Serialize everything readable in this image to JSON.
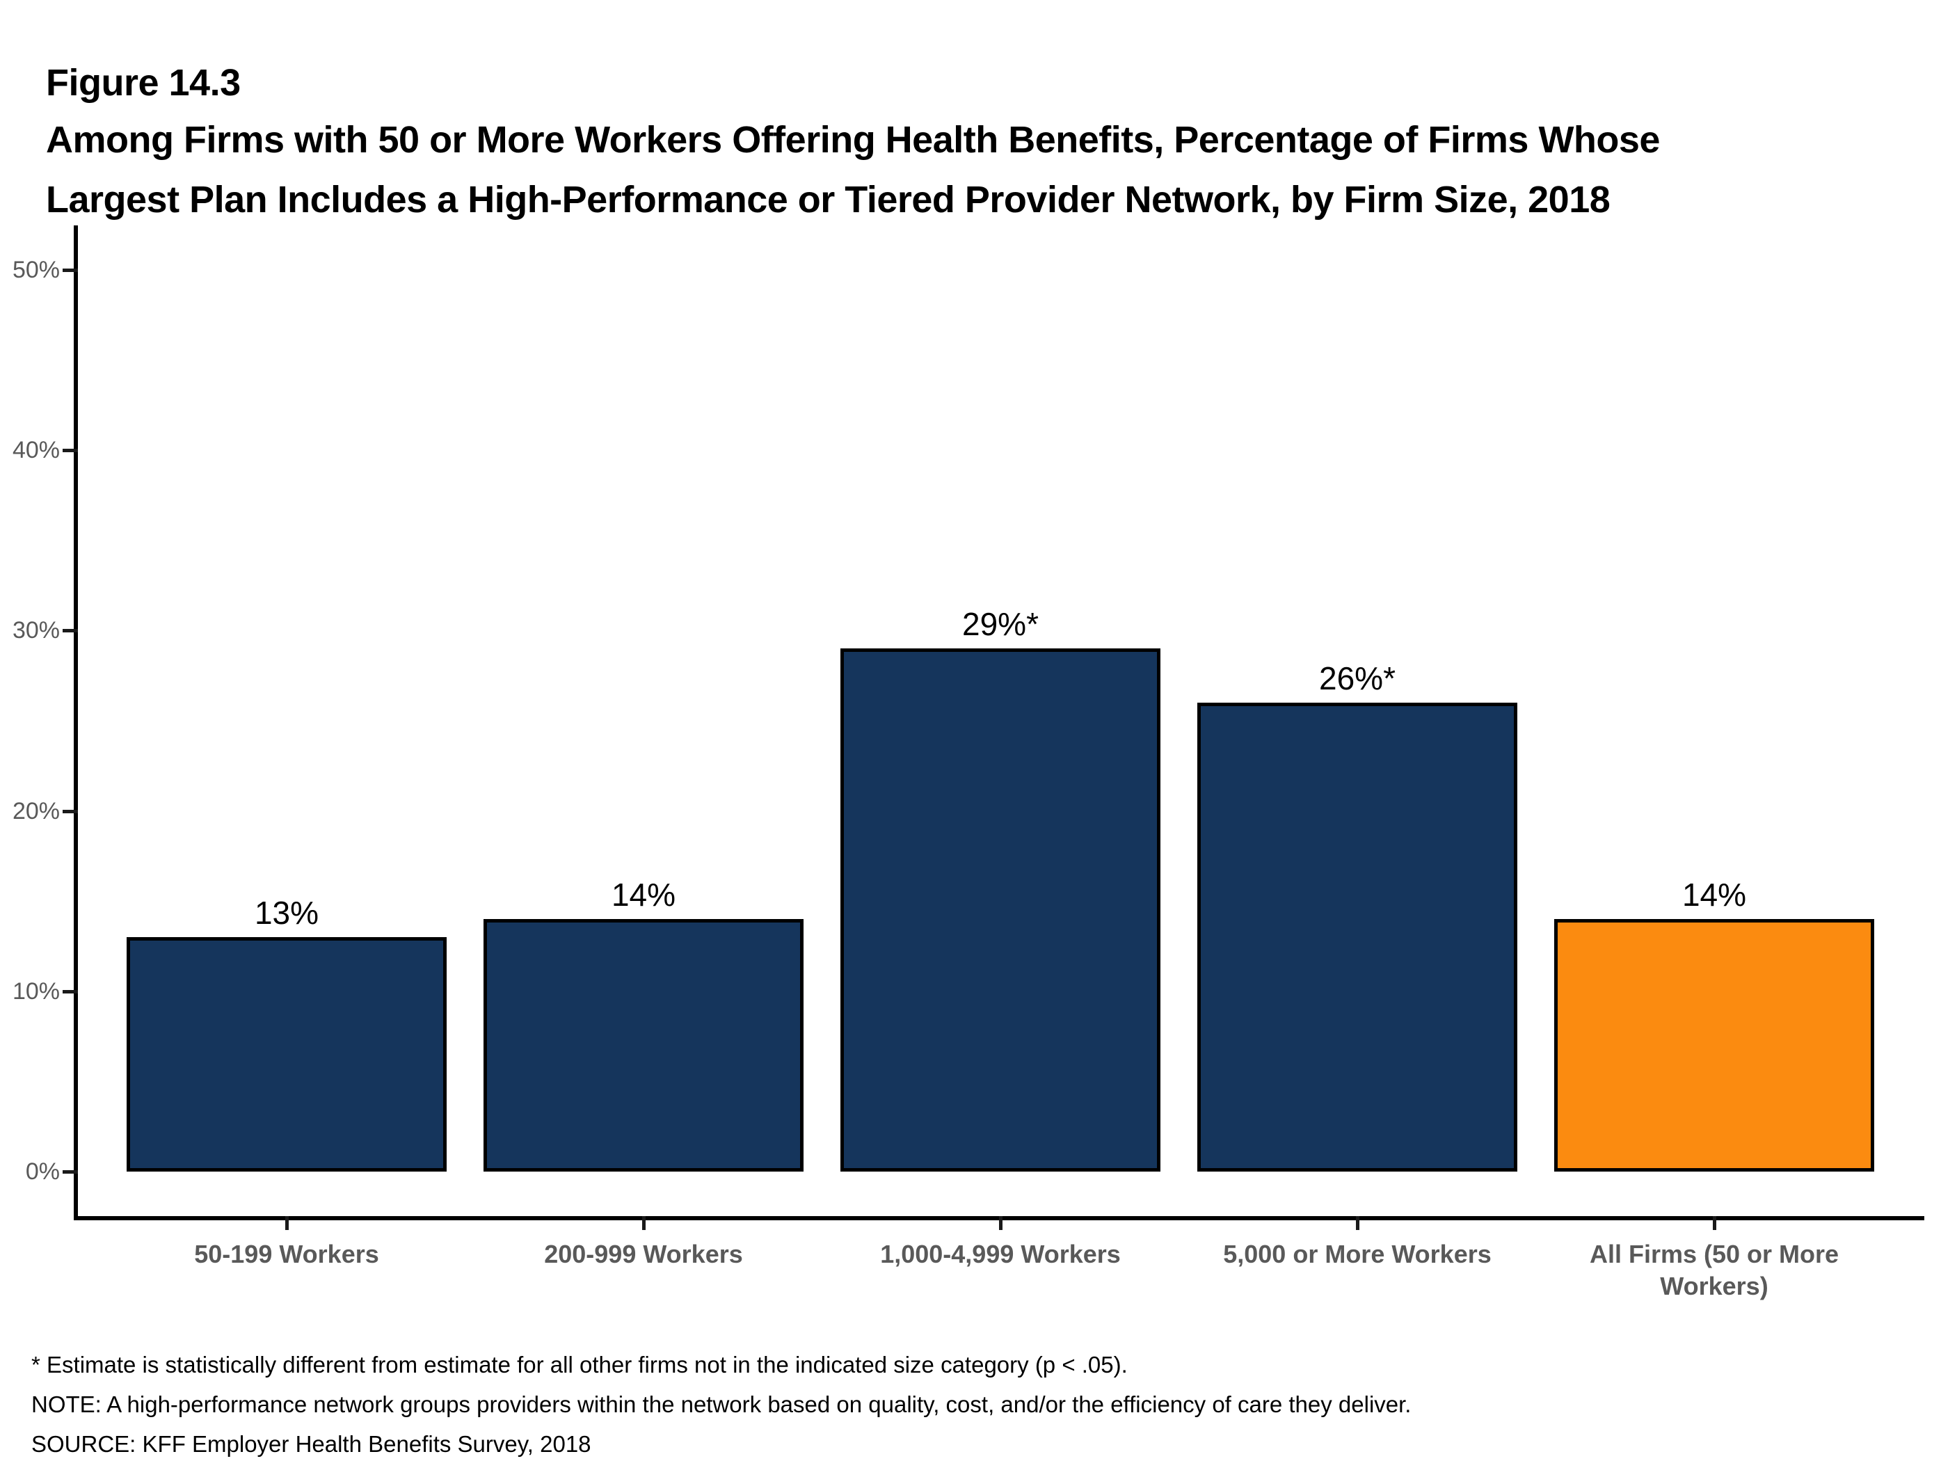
{
  "figure": {
    "number": "Figure 14.3",
    "title_line1": "Among Firms with 50 or More Workers Offering Health Benefits, Percentage of Firms Whose",
    "title_line2": "Largest Plan Includes a High-Performance or Tiered Provider Network, by Firm Size, 2018"
  },
  "chart_data": {
    "type": "bar",
    "title": "Among Firms with 50 or More Workers Offering Health Benefits, Percentage of Firms Whose Largest Plan Includes a High-Performance or Tiered Provider Network, by Firm Size, 2018",
    "categories": [
      "50-199 Workers",
      "200-999 Workers",
      "1,000-4,999 Workers",
      "5,000 or More Workers",
      "All Firms (50 or More Workers)"
    ],
    "values": [
      13,
      14,
      29,
      26,
      14
    ],
    "value_labels": [
      "13%",
      "14%",
      "29%*",
      "26%*",
      "14%"
    ],
    "bar_colors": [
      "#15355C",
      "#15355C",
      "#15355C",
      "#15355C",
      "#FB8B10"
    ],
    "xlabel": "",
    "ylabel": "",
    "ylim": [
      0,
      50
    ],
    "yticks": [
      0,
      10,
      20,
      30,
      40,
      50
    ],
    "ytick_labels": [
      "0%",
      "10%",
      "20%",
      "30%",
      "40%",
      "50%"
    ],
    "grid": false,
    "legend": "none",
    "accent_colors": {
      "navy": "#15355C",
      "orange": "#FB8B10"
    },
    "text_colors": {
      "axis_tick_label": "#595959",
      "category_label": "#595959",
      "value_label": "#000000"
    }
  },
  "footnotes": [
    "* Estimate is statistically different from estimate for all other firms not in the indicated size category (p < .05).",
    "NOTE: A high-performance network groups providers within the network based on quality, cost, and/or the efficiency of care they deliver.",
    "SOURCE: KFF Employer Health Benefits Survey, 2018"
  ]
}
